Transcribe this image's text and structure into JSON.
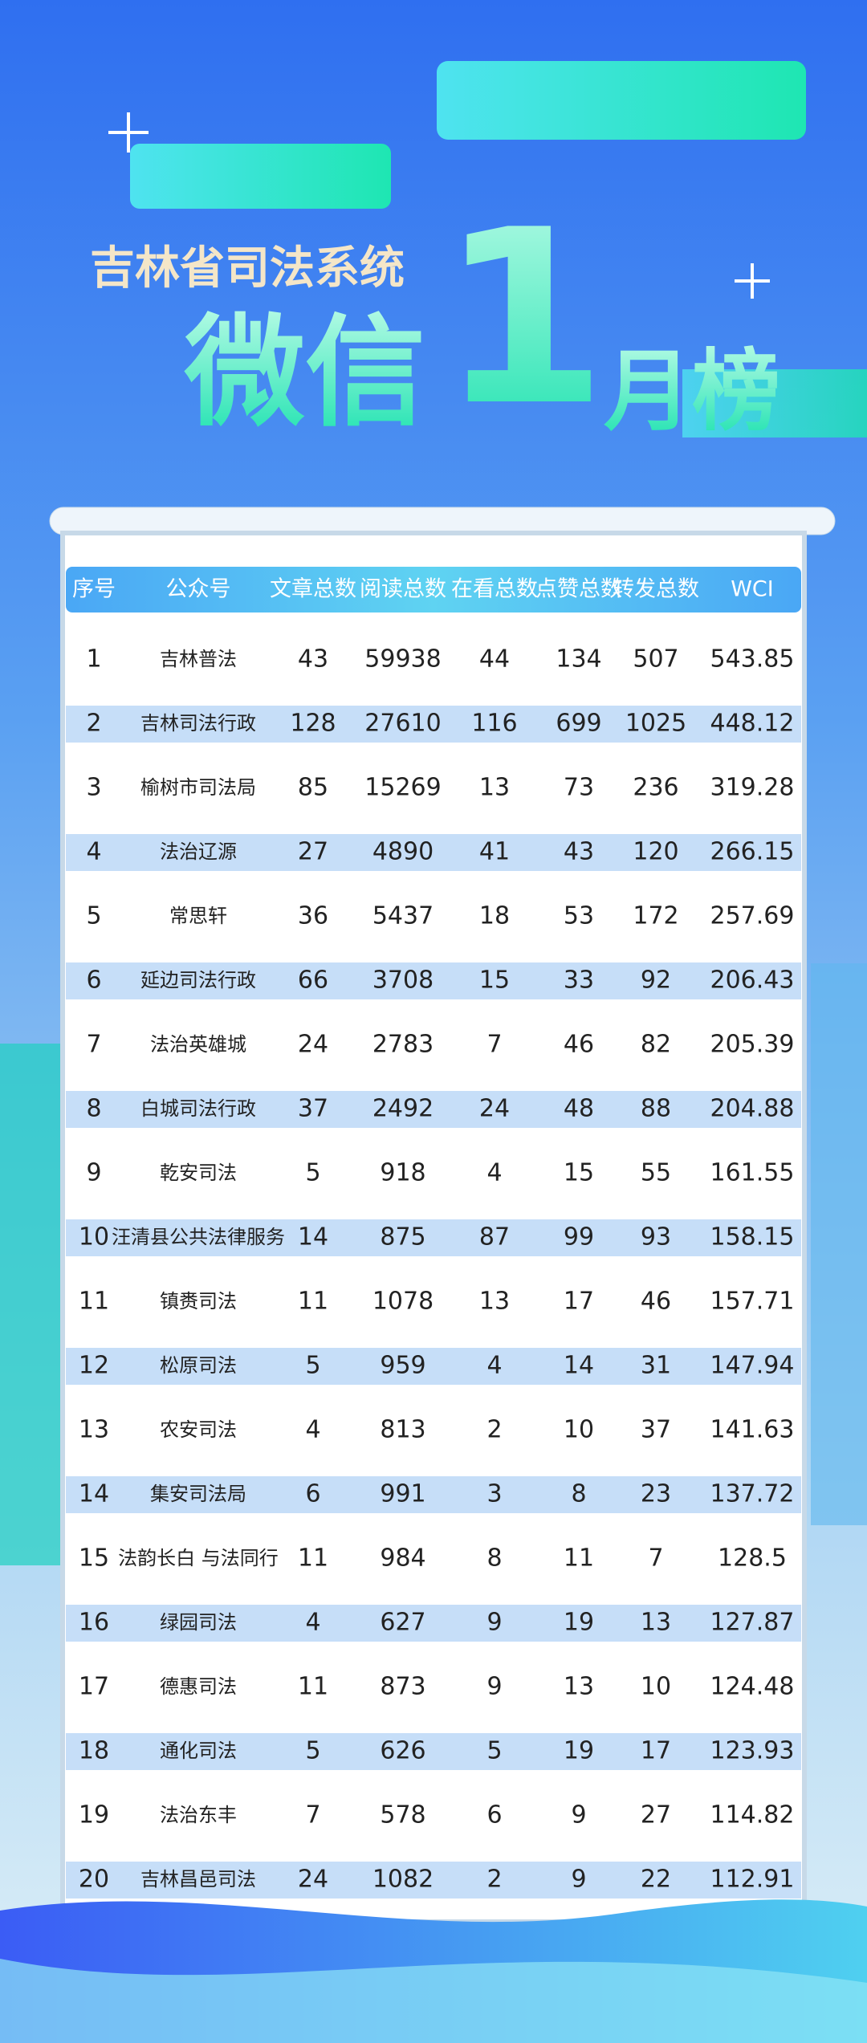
{
  "header": {
    "subtitle": "吉林省司法系统",
    "title_left": "微信",
    "title_number": "1",
    "title_right": "月榜"
  },
  "table": {
    "columns": [
      "序号",
      "公众号",
      "文章总数",
      "阅读总数",
      "在看总数",
      "点赞总数",
      "转发总数",
      "WCI"
    ],
    "rows": [
      [
        1,
        "吉林普法",
        43,
        59938,
        44,
        134,
        507,
        543.85
      ],
      [
        2,
        "吉林司法行政",
        128,
        27610,
        116,
        699,
        1025,
        448.12
      ],
      [
        3,
        "榆树市司法局",
        85,
        15269,
        13,
        73,
        236,
        319.28
      ],
      [
        4,
        "法治辽源",
        27,
        4890,
        41,
        43,
        120,
        266.15
      ],
      [
        5,
        "常思轩",
        36,
        5437,
        18,
        53,
        172,
        257.69
      ],
      [
        6,
        "延边司法行政",
        66,
        3708,
        15,
        33,
        92,
        206.43
      ],
      [
        7,
        "法治英雄城",
        24,
        2783,
        7,
        46,
        82,
        205.39
      ],
      [
        8,
        "白城司法行政",
        37,
        2492,
        24,
        48,
        88,
        204.88
      ],
      [
        9,
        "乾安司法",
        5,
        918,
        4,
        15,
        55,
        161.55
      ],
      [
        10,
        "汪清县公共法律服务",
        14,
        875,
        87,
        99,
        93,
        158.15
      ],
      [
        11,
        "镇赉司法",
        11,
        1078,
        13,
        17,
        46,
        157.71
      ],
      [
        12,
        "松原司法",
        5,
        959,
        4,
        14,
        31,
        147.94
      ],
      [
        13,
        "农安司法",
        4,
        813,
        2,
        10,
        37,
        141.63
      ],
      [
        14,
        "集安司法局",
        6,
        991,
        3,
        8,
        23,
        137.72
      ],
      [
        15,
        "法韵长白 与法同行",
        11,
        984,
        8,
        11,
        7,
        128.5
      ],
      [
        16,
        "绿园司法",
        4,
        627,
        9,
        19,
        13,
        127.87
      ],
      [
        17,
        "德惠司法",
        11,
        873,
        9,
        13,
        10,
        124.48
      ],
      [
        18,
        "通化司法",
        5,
        626,
        5,
        19,
        17,
        123.93
      ],
      [
        19,
        "法治东丰",
        7,
        578,
        6,
        9,
        27,
        114.82
      ],
      [
        20,
        "吉林昌邑司法",
        24,
        1082,
        2,
        9,
        22,
        112.91
      ]
    ]
  }
}
